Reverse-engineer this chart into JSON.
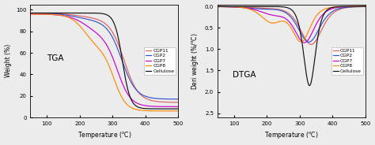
{
  "tga_colors": {
    "CGP11": "#e06060",
    "CGP2": "#3355cc",
    "CGP7": "#cc00cc",
    "CGP8": "#ff8800",
    "Cellulose": "#111111"
  },
  "dtga_colors": {
    "CGP11": "#e06060",
    "CGP2": "#3355cc",
    "CGP7": "#cc00cc",
    "CGP8": "#ff8800",
    "Cellulose": "#111111"
  },
  "tga_label": "TGA",
  "dtga_label": "DTGA",
  "xlabel": "Temperature (  C)",
  "tga_ylabel": "Weight (%)",
  "dtga_ylabel": "Deri weight (%/  C)",
  "legend_labels": [
    "CGP11",
    "CGP2",
    "CGP7",
    "CGP8",
    "Cellulose"
  ],
  "bg_color": "#ececec"
}
